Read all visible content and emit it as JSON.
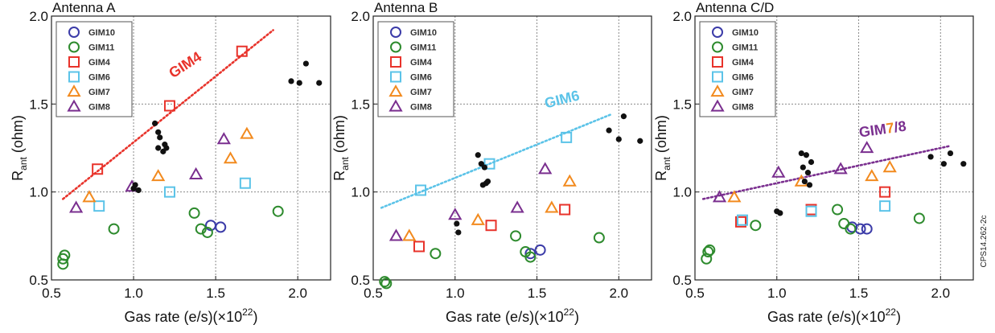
{
  "credit": "CPS14.262-2c",
  "legend_styles": [
    {
      "name": "GIM10",
      "shape": "circle",
      "color": "#3b3ba8"
    },
    {
      "name": "GIM11",
      "shape": "circle",
      "color": "#2e8b2e"
    },
    {
      "name": "GIM4",
      "shape": "square",
      "color": "#e8332b"
    },
    {
      "name": "GIM6",
      "shape": "square",
      "color": "#5bc3e8"
    },
    {
      "name": "GIM7",
      "shape": "triangle",
      "color": "#f28a1e"
    },
    {
      "name": "GIM8",
      "shape": "triangle",
      "color": "#7a2f8f"
    }
  ],
  "chart_data": [
    {
      "type": "scatter",
      "title": "Antenna A",
      "xlabel": "Gas rate (e/s)(×10²²)",
      "ylabel": "Rant (ohm)",
      "xlim": [
        0.5,
        2.2
      ],
      "ylim": [
        0.5,
        2.0
      ],
      "xticks": [
        "0.5",
        "1.0",
        "1.5",
        "2.0"
      ],
      "yticks": [
        "0.5",
        "1.0",
        "1.5",
        "2.0"
      ],
      "grid": true,
      "legend": "top-left",
      "fit": {
        "label": "GIM4",
        "color": "#e8332b",
        "x": [
          0.57,
          1.85
        ],
        "y": [
          0.96,
          1.92
        ]
      },
      "series": [
        {
          "name": "GIM10",
          "points": [
            [
              1.47,
              0.81
            ],
            [
              1.53,
              0.8
            ]
          ]
        },
        {
          "name": "GIM11",
          "points": [
            [
              0.57,
              0.59
            ],
            [
              0.57,
              0.62
            ],
            [
              0.58,
              0.64
            ],
            [
              0.88,
              0.79
            ],
            [
              1.37,
              0.88
            ],
            [
              1.41,
              0.79
            ],
            [
              1.45,
              0.77
            ],
            [
              1.88,
              0.89
            ]
          ]
        },
        {
          "name": "GIM4",
          "points": [
            [
              0.78,
              1.13
            ],
            [
              1.22,
              1.49
            ],
            [
              1.66,
              1.8
            ]
          ]
        },
        {
          "name": "GIM6",
          "points": [
            [
              0.79,
              0.92
            ],
            [
              1.22,
              1.0
            ],
            [
              1.68,
              1.05
            ]
          ]
        },
        {
          "name": "GIM7",
          "points": [
            [
              0.73,
              0.97
            ],
            [
              1.15,
              1.09
            ],
            [
              1.59,
              1.19
            ],
            [
              1.69,
              1.33
            ]
          ]
        },
        {
          "name": "GIM8",
          "points": [
            [
              0.65,
              0.91
            ],
            [
              0.99,
              1.03
            ],
            [
              1.38,
              1.1
            ],
            [
              1.55,
              1.3
            ]
          ]
        },
        {
          "name": "black",
          "points": [
            [
              1.0,
              1.02
            ],
            [
              1.01,
              1.04
            ],
            [
              1.03,
              1.01
            ],
            [
              1.13,
              1.39
            ],
            [
              1.15,
              1.34
            ],
            [
              1.15,
              1.25
            ],
            [
              1.16,
              1.31
            ],
            [
              1.18,
              1.23
            ],
            [
              1.19,
              1.27
            ],
            [
              1.2,
              1.25
            ],
            [
              1.96,
              1.63
            ],
            [
              2.01,
              1.62
            ],
            [
              2.05,
              1.73
            ],
            [
              2.13,
              1.62
            ]
          ]
        }
      ]
    },
    {
      "type": "scatter",
      "title": "Antenna B",
      "xlabel": "Gas rate (e/s)(×10²²)",
      "ylabel": "Rant (ohm)",
      "xlim": [
        0.5,
        2.2
      ],
      "ylim": [
        0.5,
        2.0
      ],
      "xticks": [
        "0.5",
        "1.0",
        "1.5",
        "2.0"
      ],
      "yticks": [
        "0.5",
        "1.0",
        "1.5",
        "2.0"
      ],
      "grid": true,
      "legend": "top-left",
      "fit": {
        "label": "GIM6",
        "color": "#5bc3e8",
        "x": [
          0.55,
          1.95
        ],
        "y": [
          0.91,
          1.44
        ]
      },
      "series": [
        {
          "name": "GIM10",
          "points": [
            [
              1.46,
              0.65
            ],
            [
              1.52,
              0.67
            ]
          ]
        },
        {
          "name": "GIM11",
          "points": [
            [
              0.57,
              0.49
            ],
            [
              0.58,
              0.48
            ],
            [
              0.88,
              0.65
            ],
            [
              1.37,
              0.75
            ],
            [
              1.43,
              0.66
            ],
            [
              1.46,
              0.63
            ],
            [
              1.88,
              0.74
            ]
          ]
        },
        {
          "name": "GIM4",
          "points": [
            [
              0.78,
              0.69
            ],
            [
              1.22,
              0.81
            ],
            [
              1.67,
              0.9
            ]
          ]
        },
        {
          "name": "GIM6",
          "points": [
            [
              0.79,
              1.01
            ],
            [
              1.21,
              1.16
            ],
            [
              1.68,
              1.31
            ]
          ]
        },
        {
          "name": "GIM7",
          "points": [
            [
              0.72,
              0.75
            ],
            [
              1.14,
              0.84
            ],
            [
              1.59,
              0.91
            ],
            [
              1.7,
              1.06
            ]
          ]
        },
        {
          "name": "GIM8",
          "points": [
            [
              0.64,
              0.75
            ],
            [
              1.0,
              0.87
            ],
            [
              1.38,
              0.91
            ],
            [
              1.55,
              1.13
            ]
          ]
        },
        {
          "name": "black",
          "points": [
            [
              1.01,
              0.82
            ],
            [
              1.02,
              0.77
            ],
            [
              1.14,
              1.21
            ],
            [
              1.16,
              1.16
            ],
            [
              1.17,
              1.04
            ],
            [
              1.18,
              1.14
            ],
            [
              1.19,
              1.05
            ],
            [
              1.2,
              1.06
            ],
            [
              1.94,
              1.35
            ],
            [
              2.0,
              1.3
            ],
            [
              2.03,
              1.43
            ],
            [
              2.13,
              1.29
            ]
          ]
        }
      ]
    },
    {
      "type": "scatter",
      "title": "Antenna C/D",
      "xlabel": "Gas rate (e/s)(×10²²)",
      "ylabel": "Rant (ohm)",
      "xlim": [
        0.5,
        2.2
      ],
      "ylim": [
        0.5,
        2.0
      ],
      "xticks": [
        "0.5",
        "1.0",
        "1.5",
        "2.0"
      ],
      "yticks": [
        "0.5",
        "1.0",
        "1.5",
        "2.0"
      ],
      "grid": true,
      "legend": "top-left",
      "fit": {
        "label": "GIM7/8",
        "color": "#7a2f8f",
        "x": [
          0.55,
          2.05
        ],
        "y": [
          0.96,
          1.26
        ]
      },
      "series": [
        {
          "name": "GIM10",
          "points": [
            [
              1.46,
              0.8
            ],
            [
              1.51,
              0.79
            ],
            [
              1.55,
              0.79
            ]
          ]
        },
        {
          "name": "GIM11",
          "points": [
            [
              0.57,
              0.62
            ],
            [
              0.58,
              0.66
            ],
            [
              0.59,
              0.67
            ],
            [
              0.87,
              0.81
            ],
            [
              1.37,
              0.9
            ],
            [
              1.41,
              0.82
            ],
            [
              1.45,
              0.79
            ],
            [
              1.87,
              0.85
            ]
          ]
        },
        {
          "name": "GIM4",
          "points": [
            [
              0.78,
              0.83
            ],
            [
              1.21,
              0.9
            ],
            [
              1.66,
              1.0
            ]
          ]
        },
        {
          "name": "GIM6",
          "points": [
            [
              0.79,
              0.84
            ],
            [
              1.21,
              0.89
            ],
            [
              1.66,
              0.92
            ]
          ]
        },
        {
          "name": "GIM7",
          "points": [
            [
              0.74,
              0.97
            ],
            [
              1.15,
              1.06
            ],
            [
              1.58,
              1.09
            ],
            [
              1.69,
              1.14
            ]
          ]
        },
        {
          "name": "GIM8",
          "points": [
            [
              0.65,
              0.97
            ],
            [
              1.01,
              1.11
            ],
            [
              1.39,
              1.13
            ],
            [
              1.55,
              1.25
            ]
          ]
        },
        {
          "name": "black",
          "points": [
            [
              1.0,
              0.89
            ],
            [
              1.02,
              0.88
            ],
            [
              1.15,
              1.22
            ],
            [
              1.16,
              1.14
            ],
            [
              1.17,
              1.06
            ],
            [
              1.18,
              1.21
            ],
            [
              1.19,
              1.11
            ],
            [
              1.2,
              1.04
            ],
            [
              1.21,
              1.17
            ],
            [
              1.94,
              1.2
            ],
            [
              2.02,
              1.16
            ],
            [
              2.06,
              1.22
            ],
            [
              2.14,
              1.16
            ]
          ]
        }
      ]
    }
  ]
}
